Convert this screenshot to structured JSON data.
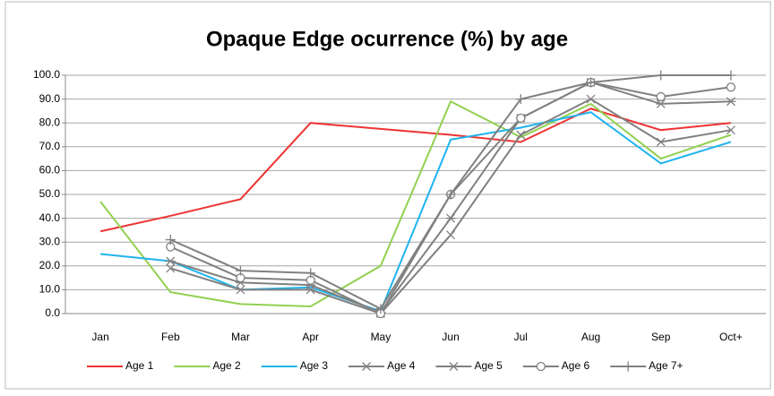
{
  "chart_data": {
    "type": "line",
    "title": "Opaque Edge ocurrence (%) by age",
    "categories": [
      "Jan",
      "Feb",
      "Mar",
      "Apr",
      "May",
      "Jun",
      "Jul",
      "Aug",
      "Sep",
      "Oct+"
    ],
    "series": [
      {
        "name": "Age 1",
        "color": "#ee3333",
        "marker": "none",
        "values": [
          34.5,
          41,
          48,
          80,
          77.5,
          75,
          72,
          86,
          77,
          80
        ]
      },
      {
        "name": "Age 2",
        "color": "#92d050",
        "marker": "none",
        "values": [
          47,
          9,
          4,
          3,
          20,
          89,
          74,
          88,
          65,
          75
        ]
      },
      {
        "name": "Age 3",
        "color": "#1fb4ee",
        "marker": "none",
        "values": [
          25,
          22,
          10,
          11,
          1,
          73,
          78,
          84.5,
          63,
          72
        ]
      },
      {
        "name": "Age 4",
        "color": "#808080",
        "marker": "x",
        "values": [
          null,
          19,
          10,
          10,
          0,
          33,
          75,
          90,
          72,
          77
        ]
      },
      {
        "name": "Age 5",
        "color": "#808080",
        "marker": "star",
        "values": [
          null,
          22,
          13,
          12,
          0.5,
          40,
          82,
          97,
          88,
          89
        ]
      },
      {
        "name": "Age 6",
        "color": "#808080",
        "marker": "circle",
        "values": [
          null,
          28,
          15,
          14,
          0,
          50,
          82,
          97,
          91,
          95
        ]
      },
      {
        "name": "Age 7+",
        "color": "#808080",
        "marker": "plus",
        "values": [
          null,
          31,
          18,
          17,
          2,
          50,
          90,
          97,
          100,
          100
        ]
      }
    ],
    "ylim": [
      0,
      100
    ],
    "yticks": [
      {
        "value": 0,
        "label": "0.0"
      },
      {
        "value": 10,
        "label": "10.0"
      },
      {
        "value": 20,
        "label": "20.0"
      },
      {
        "value": 30,
        "label": "30.0"
      },
      {
        "value": 40,
        "label": "40.0"
      },
      {
        "value": 50,
        "label": "50.0"
      },
      {
        "value": 60,
        "label": "60.0"
      },
      {
        "value": 70,
        "label": "70.0"
      },
      {
        "value": 80,
        "label": "80.0"
      },
      {
        "value": 90,
        "label": "90.0"
      },
      {
        "value": 100,
        "label": "100.0"
      }
    ],
    "grid": true
  }
}
